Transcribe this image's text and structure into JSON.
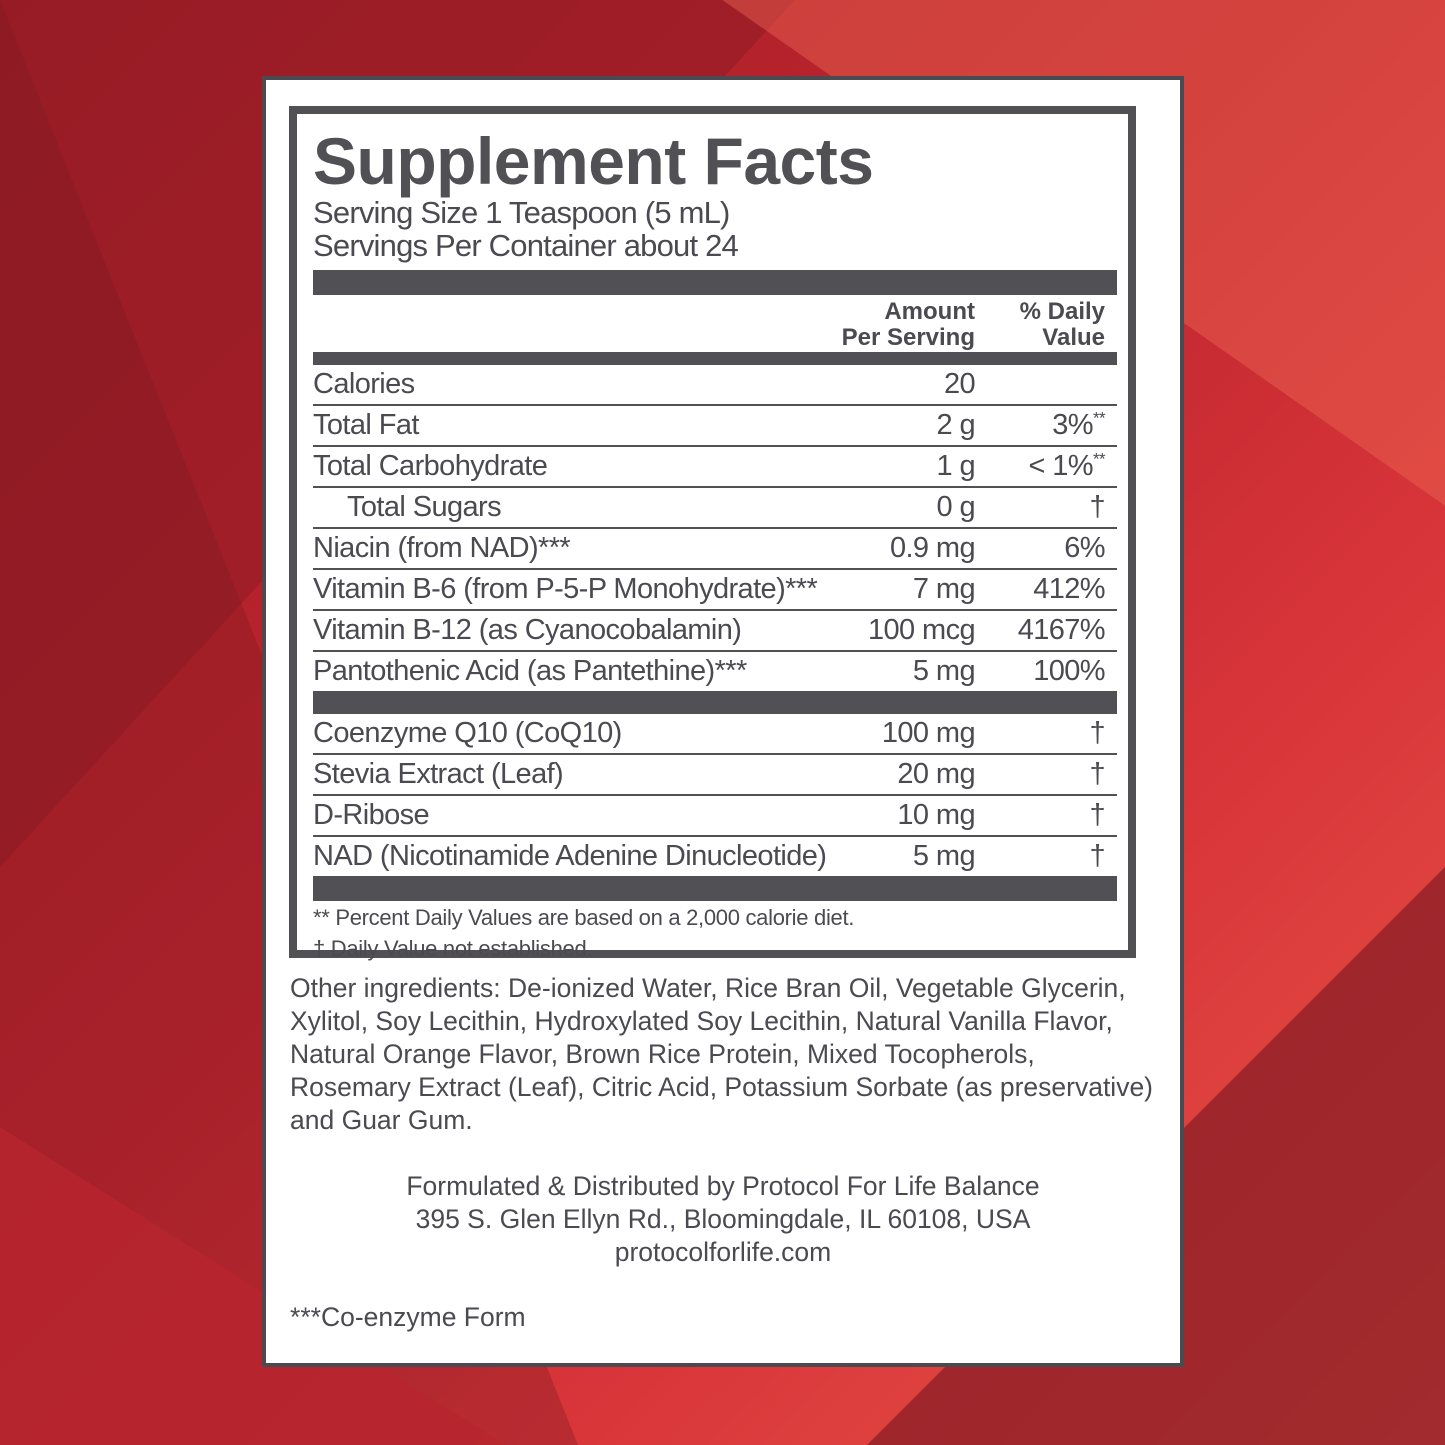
{
  "colors": {
    "background": "#c0262f",
    "ink": "#4a4a50"
  },
  "title": "Supplement Facts",
  "serving_size": "Serving Size 1 Teaspoon (5 mL)",
  "servings_per_container": "Servings Per Container about 24",
  "headers": {
    "amount_line1": "Amount",
    "amount_line2": "Per Serving",
    "dv_line1": "% Daily",
    "dv_line2": "Value"
  },
  "rows": [
    {
      "name": "Calories",
      "amount": "20",
      "dv": "",
      "mark": ""
    },
    {
      "name": "Total Fat",
      "amount": "2 g",
      "dv": "3%",
      "mark": "**"
    },
    {
      "name": "Total Carbohydrate",
      "amount": "1 g",
      "dv": "< 1%",
      "mark": "**"
    },
    {
      "name": "Total Sugars",
      "amount": "0 g",
      "dv": "†",
      "mark": ""
    },
    {
      "name": "Niacin (from NAD)***",
      "amount": "0.9 mg",
      "dv": "6%",
      "mark": ""
    },
    {
      "name": "Vitamin B-6 (from P-5-P Monohydrate)***",
      "amount": "7 mg",
      "dv": "412%",
      "mark": ""
    },
    {
      "name": "Vitamin B-12 (as Cyanocobalamin)",
      "amount": "100 mcg",
      "dv": "4167%",
      "mark": ""
    },
    {
      "name": "Pantothenic Acid (as Pantethine)***",
      "amount": "5 mg",
      "dv": "100%",
      "mark": ""
    }
  ],
  "rows2": [
    {
      "name": "Coenzyme Q10 (CoQ10)",
      "amount": "100 mg",
      "dv": "†"
    },
    {
      "name": "Stevia Extract (Leaf)",
      "amount": "20 mg",
      "dv": "†"
    },
    {
      "name": "D-Ribose",
      "amount": "10 mg",
      "dv": "†"
    },
    {
      "name": "NAD (Nicotinamide Adenine Dinucleotide)",
      "amount": "5 mg",
      "dv": "†"
    }
  ],
  "footnotes": [
    "** Percent Daily Values are based on a 2,000 calorie diet.",
    "† Daily Value not established."
  ],
  "other_ingredients": "Other ingredients: De-ionized Water, Rice Bran Oil, Vegetable Glycerin, Xylitol, Soy Lecithin, Hydroxylated Soy Lecithin, Natural Vanilla Flavor, Natural Orange Flavor, Brown Rice Protein, Mixed Tocopherols, Rosemary Extract (Leaf), Citric Acid, Potassium Sorbate (as preservative) and Guar Gum.",
  "distributor": [
    "Formulated & Distributed by Protocol For Life Balance",
    "395 S. Glen Ellyn Rd., Bloomingdale, IL 60108, USA",
    "protocolforlife.com"
  ],
  "coenzyme_note": "***Co-enzyme Form"
}
